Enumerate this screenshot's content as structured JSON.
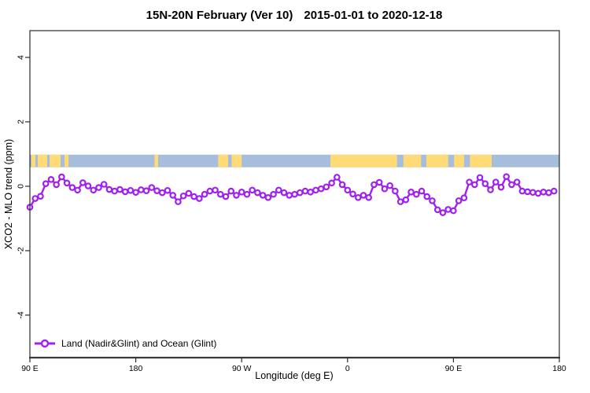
{
  "title": {
    "main": "15N-20N February (Ver 10)",
    "dates": "2015-01-01 to 2020-12-18"
  },
  "chart_data": {
    "type": "line",
    "title": "15N-20N February (Ver 10)  2015-01-01 to 2020-12-18",
    "xlabel": "Longitude (deg E)",
    "ylabel": "XCO2 - MLO trend (ppm)",
    "grid": false,
    "x_axis": {
      "range": [
        90,
        540
      ],
      "ticks": [
        {
          "value": 90,
          "label": "90 E"
        },
        {
          "value": 180,
          "label": "180"
        },
        {
          "value": 270,
          "label": "90 W"
        },
        {
          "value": 360,
          "label": "0"
        },
        {
          "value": 450,
          "label": "90 E"
        },
        {
          "value": 540,
          "label": "180"
        }
      ]
    },
    "y_axis": {
      "range": [
        -5.32,
        4.83
      ],
      "ticks": [
        {
          "value": -4,
          "label": "-4"
        },
        {
          "value": -2,
          "label": "-2"
        },
        {
          "value": 0,
          "label": "0"
        },
        {
          "value": 2,
          "label": "2"
        },
        {
          "value": 4,
          "label": "4"
        }
      ]
    },
    "legend": {
      "position": "bottom-left",
      "label": "Land (Nadir&Glint) and Ocean (Glint)"
    },
    "band": {
      "description": "land/ocean indicator strip",
      "y_range": [
        0.59,
        0.98
      ],
      "ocean_color": "#A6BDDC",
      "land_color": "#FFDB78",
      "land_segments": [
        [
          91.3,
          94.7
        ],
        [
          96.7,
          104.7
        ],
        [
          106.7,
          116.1
        ],
        [
          119.4,
          122.8
        ],
        [
          196,
          199
        ],
        [
          250,
          258.5
        ],
        [
          261.5,
          270
        ],
        [
          345.5,
          402
        ],
        [
          407.5,
          422.5
        ],
        [
          427,
          445.5
        ],
        [
          450.5,
          459
        ],
        [
          464,
          482.5
        ]
      ]
    },
    "series": [
      {
        "name": "Land (Nadir&Glint) and Ocean (Glint)",
        "color": "#A020F0",
        "marker": "open-circle",
        "x": [
          90,
          94.5,
          99,
          103.5,
          108,
          112.5,
          117,
          121.5,
          126,
          130.5,
          135,
          139.5,
          144,
          148.5,
          153,
          157.5,
          162,
          166.5,
          171,
          175.5,
          180,
          184.5,
          189,
          193.5,
          198,
          202.5,
          207,
          211.5,
          216,
          220.5,
          225,
          229.5,
          234,
          238.5,
          243,
          247.5,
          252,
          256.5,
          261,
          265.5,
          270,
          274.5,
          279,
          283.5,
          288,
          292.5,
          297,
          301.5,
          306,
          310.5,
          315,
          319.5,
          324,
          328.5,
          333,
          337.5,
          342,
          346.5,
          351,
          355.5,
          360,
          364.5,
          369,
          373.5,
          378,
          382.5,
          387,
          391.5,
          396,
          400.5,
          405,
          409.5,
          414,
          418.5,
          423,
          427.5,
          432,
          436.5,
          441,
          445.5,
          450,
          454.5,
          459,
          463.5,
          468,
          472.5,
          477,
          481.5,
          486,
          490.5,
          495,
          499.5,
          504,
          508.5,
          513,
          517.5,
          522,
          526.5,
          531,
          535.5
        ],
        "y": [
          -0.65,
          -0.38,
          -0.31,
          0.08,
          0.21,
          0.05,
          0.29,
          0.1,
          -0.04,
          -0.12,
          0.11,
          0.01,
          -0.12,
          -0.04,
          0.06,
          -0.1,
          -0.15,
          -0.1,
          -0.17,
          -0.13,
          -0.19,
          -0.11,
          -0.14,
          -0.04,
          -0.14,
          -0.2,
          -0.13,
          -0.28,
          -0.48,
          -0.3,
          -0.22,
          -0.32,
          -0.38,
          -0.25,
          -0.15,
          -0.12,
          -0.25,
          -0.32,
          -0.15,
          -0.28,
          -0.18,
          -0.25,
          -0.12,
          -0.2,
          -0.28,
          -0.35,
          -0.25,
          -0.12,
          -0.2,
          -0.28,
          -0.25,
          -0.2,
          -0.15,
          -0.18,
          -0.12,
          -0.08,
          -0.02,
          0.1,
          0.28,
          0.05,
          -0.12,
          -0.24,
          -0.35,
          -0.28,
          -0.35,
          0.05,
          0.12,
          -0.08,
          0.02,
          -0.15,
          -0.48,
          -0.42,
          -0.18,
          -0.25,
          -0.15,
          -0.32,
          -0.45,
          -0.73,
          -0.82,
          -0.72,
          -0.76,
          -0.45,
          -0.36,
          0.13,
          0.05,
          0.27,
          0.08,
          -0.11,
          0.13,
          -0.03,
          0.3,
          0.05,
          0.13,
          -0.15,
          -0.17,
          -0.19,
          -0.22,
          -0.18,
          -0.2,
          -0.15
        ]
      }
    ]
  }
}
